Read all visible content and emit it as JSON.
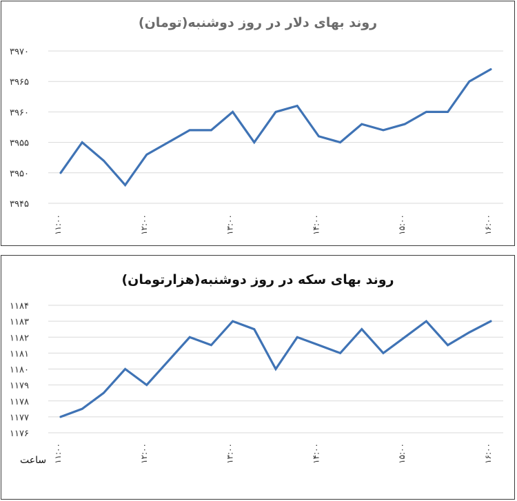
{
  "chart_data": [
    {
      "type": "line",
      "title": "روند بهای دلار در روز دوشنبه(تومان)",
      "xlabel": "",
      "ylabel": "",
      "ylim": [
        3945,
        3970
      ],
      "yticks": [
        3945,
        3950,
        3955,
        3960,
        3965,
        3970
      ],
      "ytick_labels": [
        "۳۹۴۵",
        "۳۹۵۰",
        "۳۹۵۵",
        "۳۹۶۰",
        "۳۹۶۵",
        "۳۹۷۰"
      ],
      "x_tick_labels": [
        "۱۱:۰۰",
        "۱۲:۰۰",
        "۱۳:۰۰",
        "۱۴:۰۰",
        "۱۵:۰۰",
        "۱۶:۰۰"
      ],
      "grid": true,
      "color": "#3f73b5",
      "series": [
        {
          "values": [
            3950,
            3955,
            3952,
            3948,
            3953,
            3955,
            3957,
            3957,
            3960,
            3955,
            3960,
            3961,
            3956,
            3955,
            3958,
            3957,
            3958,
            3960,
            3960,
            3965,
            3967
          ]
        }
      ]
    },
    {
      "type": "line",
      "title": "روند بهای سکه در روز دوشنبه(هزارتومان)",
      "xlabel": "ساعت",
      "ylabel": "",
      "ylim": [
        1176,
        1184
      ],
      "yticks": [
        1176,
        1177,
        1178,
        1179,
        1180,
        1181,
        1182,
        1183,
        1184
      ],
      "ytick_labels": [
        "۱۱۷۶",
        "۱۱۷۷",
        "۱۱۷۸",
        "۱۱۷۹",
        "۱۱۸۰",
        "۱۱۸۱",
        "۱۱۸۲",
        "۱۱۸۳",
        "۱۱۸۴"
      ],
      "x_tick_labels": [
        "۱۱:۰۰",
        "۱۲:۰۰",
        "۱۳:۰۰",
        "۱۴:۰۰",
        "۱۵:۰۰",
        "۱۶:۰۰"
      ],
      "grid": true,
      "color": "#3f73b5",
      "series": [
        {
          "values": [
            1177,
            1177.5,
            1178.5,
            1180,
            1179,
            1180.5,
            1182,
            1181.5,
            1183,
            1182.5,
            1180,
            1182,
            1181.5,
            1181,
            1182.5,
            1181,
            1182,
            1183,
            1181.5,
            1182.3,
            1183
          ]
        }
      ]
    }
  ]
}
